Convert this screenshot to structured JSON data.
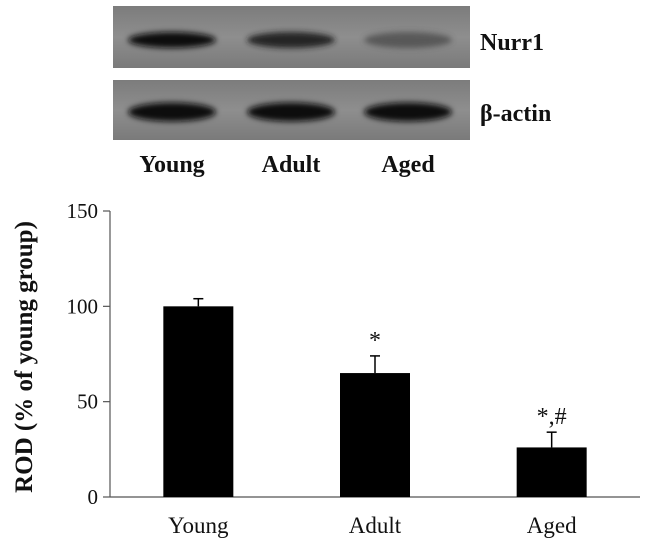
{
  "blot": {
    "lanes": [
      "Young",
      "Adult",
      "Aged"
    ],
    "rows": [
      {
        "label": "Nurr1",
        "intensity": [
          1.0,
          0.85,
          0.45
        ]
      },
      {
        "label": "β-actin",
        "intensity": [
          1.0,
          1.0,
          1.0
        ]
      }
    ]
  },
  "chart_data": {
    "type": "bar",
    "categories": [
      "Young",
      "Adult",
      "Aged"
    ],
    "values": [
      100,
      65,
      26
    ],
    "errors": [
      4,
      9,
      8
    ],
    "annotations": [
      "",
      "*",
      "*,#"
    ],
    "ylabel": "ROD (% of young group)",
    "xlabel": "",
    "ylim": [
      0,
      150
    ],
    "yticks": [
      0,
      50,
      100,
      150
    ],
    "bar_color": "#000000",
    "grid": false
  }
}
